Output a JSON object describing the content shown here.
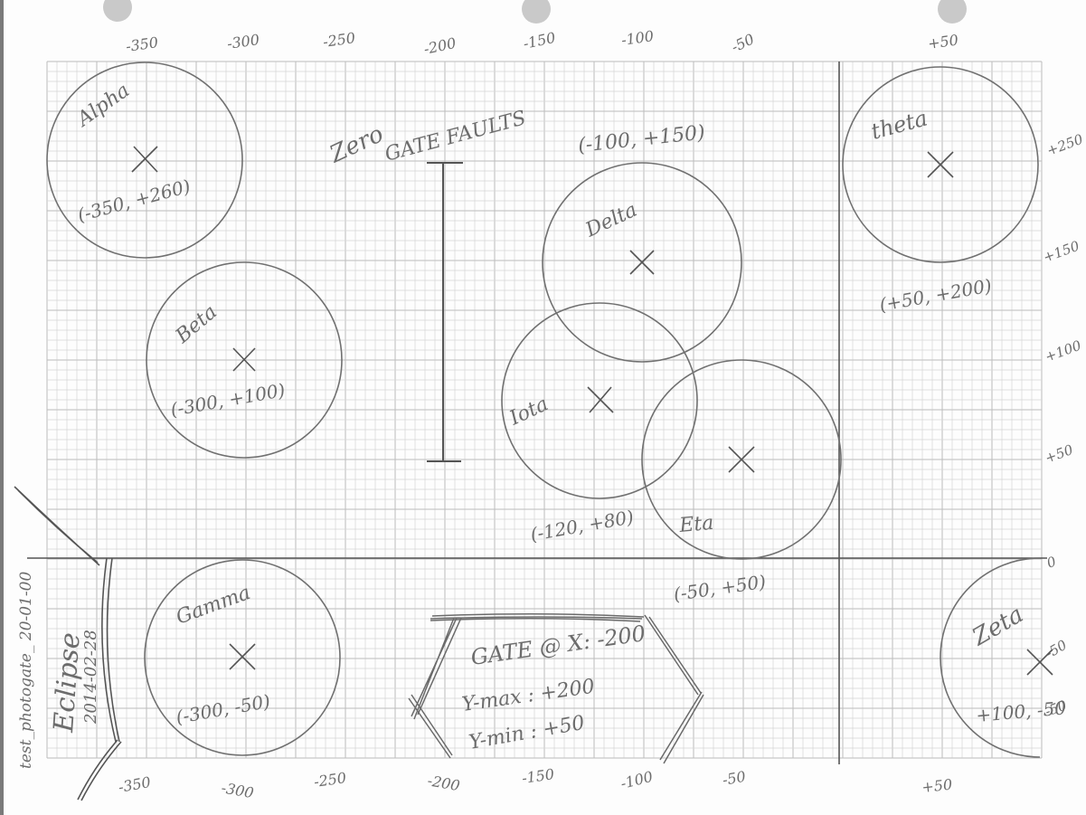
{
  "colors": {
    "paper": "#fdfdfd",
    "grid_minor": "#d4d4d4",
    "grid_major": "#bcbcbc",
    "pencil": "#707070",
    "pencil_dark": "#555555",
    "punch_hole": "#c9c9c9"
  },
  "diagram": {
    "title_top": "Zero",
    "title": "GATE FAULTS",
    "top_ticks": [
      "-350",
      "-300",
      "-250",
      "-200",
      "-150",
      "-100",
      "-50",
      "+50"
    ],
    "bottom_ticks": [
      "-350",
      "-300",
      "-250",
      "-200",
      "-150",
      "-100",
      "-50",
      "+50"
    ],
    "right_ticks": [
      "+250",
      "+150",
      "+100",
      "+50",
      "0",
      "-50",
      "-50"
    ],
    "circles": [
      {
        "name": "Alpha",
        "coord": "(-350, +260)"
      },
      {
        "name": "Beta",
        "coord": "(-300, +100)"
      },
      {
        "name": "Delta",
        "coord": "(-100, +150)"
      },
      {
        "name": "Iota",
        "coord": "(-120, +80)"
      },
      {
        "name": "Eta",
        "coord": "(-50, +50)"
      },
      {
        "name": "theta",
        "coord": "(+50, +200)"
      },
      {
        "name": "Gamma",
        "coord": "(-300, -50)"
      },
      {
        "name": "Zeta",
        "coord": "+100, -50"
      }
    ],
    "gate_note": {
      "line1": "GATE @ X: -200",
      "line2": "Y-max : +200",
      "line3": "Y-min : +50"
    },
    "side_note": {
      "line1": "test_photogate_ 20-01-00",
      "line2": "Eclipse",
      "line3": "2014-02-28"
    }
  }
}
